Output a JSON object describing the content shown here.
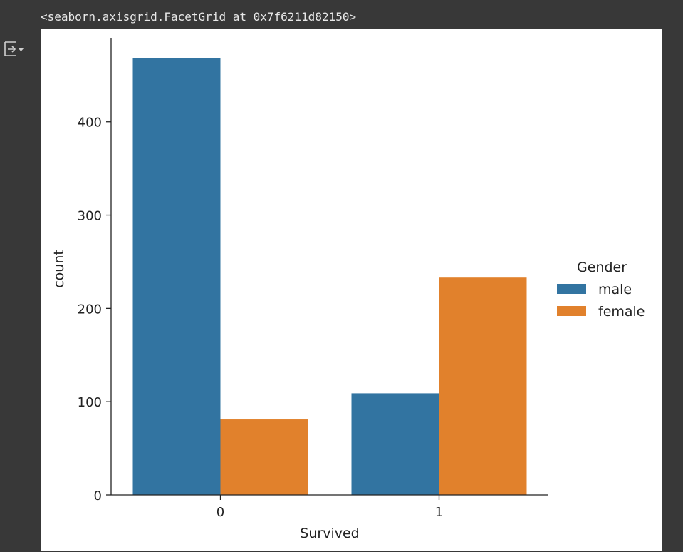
{
  "output": {
    "repr_text": "<seaborn.axisgrid.FacetGrid at 0x7f6211d82150>",
    "gutter_icon": "output-actions-icon"
  },
  "colors": {
    "male": "#3274a1",
    "female": "#e1812c",
    "background": "#383838",
    "figure_bg": "#ffffff"
  },
  "chart_data": {
    "type": "bar",
    "title": "",
    "xlabel": "Survived",
    "ylabel": "count",
    "categories": [
      "0",
      "1"
    ],
    "series": [
      {
        "name": "male",
        "values": [
          468,
          109
        ]
      },
      {
        "name": "female",
        "values": [
          81,
          233
        ]
      }
    ],
    "ylim": [
      0,
      490
    ],
    "yticks": [
      0,
      100,
      200,
      300,
      400
    ],
    "legend": {
      "title": "Gender",
      "position": "right"
    },
    "grid": false
  }
}
